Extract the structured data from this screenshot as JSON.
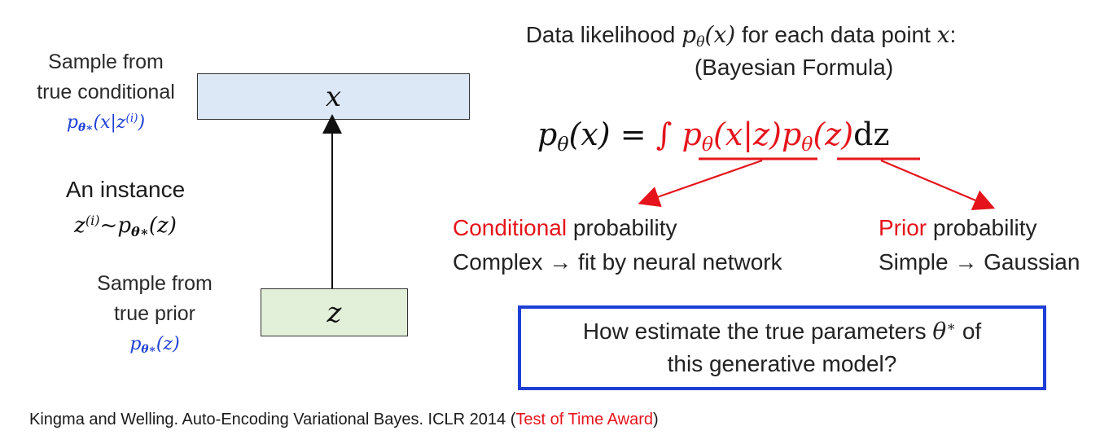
{
  "left": {
    "sample_conditional_line1": "Sample from",
    "sample_conditional_line2": "true conditional",
    "instance_label": "An instance",
    "sample_prior_line1": "Sample from",
    "sample_prior_line2": "true prior"
  },
  "nodes": {
    "x_label": "x",
    "z_label": "z"
  },
  "right": {
    "likelihood_prefix": "Data likelihood",
    "likelihood_mid": "for each data point",
    "likelihood_suffix": ":",
    "bayesian": "(Bayesian Formula)",
    "conditional_word": "Conditional",
    "conditional_rest": "probability",
    "conditional_desc": "Complex → fit by neural network",
    "prior_word": "Prior",
    "prior_rest": "probability",
    "prior_desc": "Simple → Gaussian",
    "question_line1_a": "How estimate the true parameters",
    "question_line1_b": "of",
    "question_line2": "this generative model?"
  },
  "footer": {
    "citation": "Kingma and Welling. Auto-Encoding Variational Bayes. ICLR 2014 (",
    "award": "Test of Time Award",
    "close": ")"
  },
  "colors": {
    "blue": "#1e3fd6",
    "red": "#e5141c",
    "x_box": "#dce8f5",
    "z_box": "#e2efd9"
  }
}
